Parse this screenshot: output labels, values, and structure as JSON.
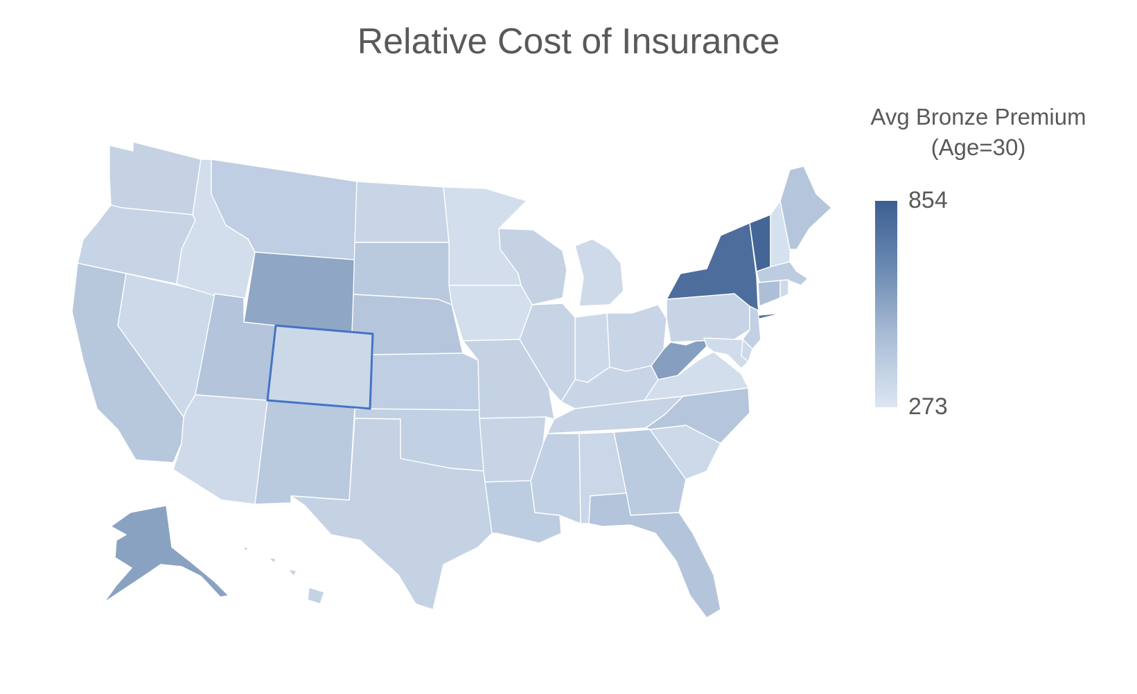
{
  "title": "Relative Cost of Insurance",
  "legend": {
    "title_line1": "Avg Bronze Premium",
    "title_line2": "(Age=30)",
    "max": "854",
    "min": "273"
  },
  "colors": {
    "low": "#dce6f2",
    "mid": "#a9bcd5",
    "high": "#3b5f91",
    "selected_outline": "#4472c4"
  },
  "selected_state": "CO",
  "states": {
    "WA": 0.24,
    "OR": 0.22,
    "CA": 0.36,
    "NV": 0.16,
    "ID": 0.1,
    "MT": 0.28,
    "WY": 0.62,
    "UT": 0.4,
    "AZ": 0.14,
    "CO": 0.17,
    "NM": 0.34,
    "ND": 0.2,
    "SD": 0.34,
    "NE": 0.38,
    "KS": 0.28,
    "OK": 0.26,
    "TX": 0.24,
    "MN": 0.1,
    "IA": 0.08,
    "MO": 0.24,
    "AR": 0.22,
    "LA": 0.3,
    "WI": 0.24,
    "IL": 0.22,
    "MI": 0.14,
    "IN": 0.16,
    "OH": 0.2,
    "KY": 0.2,
    "TN": 0.22,
    "MS": 0.26,
    "AL": 0.18,
    "GA": 0.32,
    "FL": 0.4,
    "SC": 0.16,
    "NC": 0.38,
    "VA": 0.1,
    "WV": 0.66,
    "PA": 0.22,
    "NY": 0.92,
    "VT": 0.96,
    "NH": 0.06,
    "ME": 0.38,
    "MA": 0.3,
    "CT": 0.46,
    "RI": 0.14,
    "NJ": 0.26,
    "DE": 0.16,
    "MD": 0.12,
    "AK": 0.64,
    "HI": 0.24
  }
}
